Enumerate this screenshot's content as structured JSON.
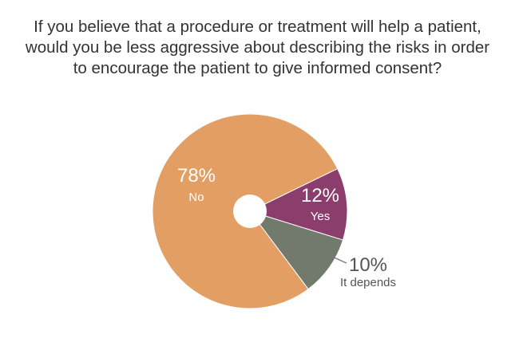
{
  "title_lines": [
    "If you believe that a procedure or treatment will help a patient,",
    "would you be less aggressive about describing the risks in order",
    "to encourage the patient to give informed consent?"
  ],
  "chart_data": {
    "type": "pie",
    "title": "If you believe that a procedure or treatment will help a patient, would you be less aggressive about describing the risks in order to encourage the patient to give informed consent?",
    "labels": [
      "Yes",
      "It depends",
      "No"
    ],
    "values": [
      12,
      10,
      78
    ],
    "value_labels": [
      "12%",
      "10%",
      "78%"
    ],
    "colors": [
      "#8b3e6c",
      "#717a6c",
      "#e39f63"
    ],
    "donut_hole": true,
    "legend": "none"
  }
}
